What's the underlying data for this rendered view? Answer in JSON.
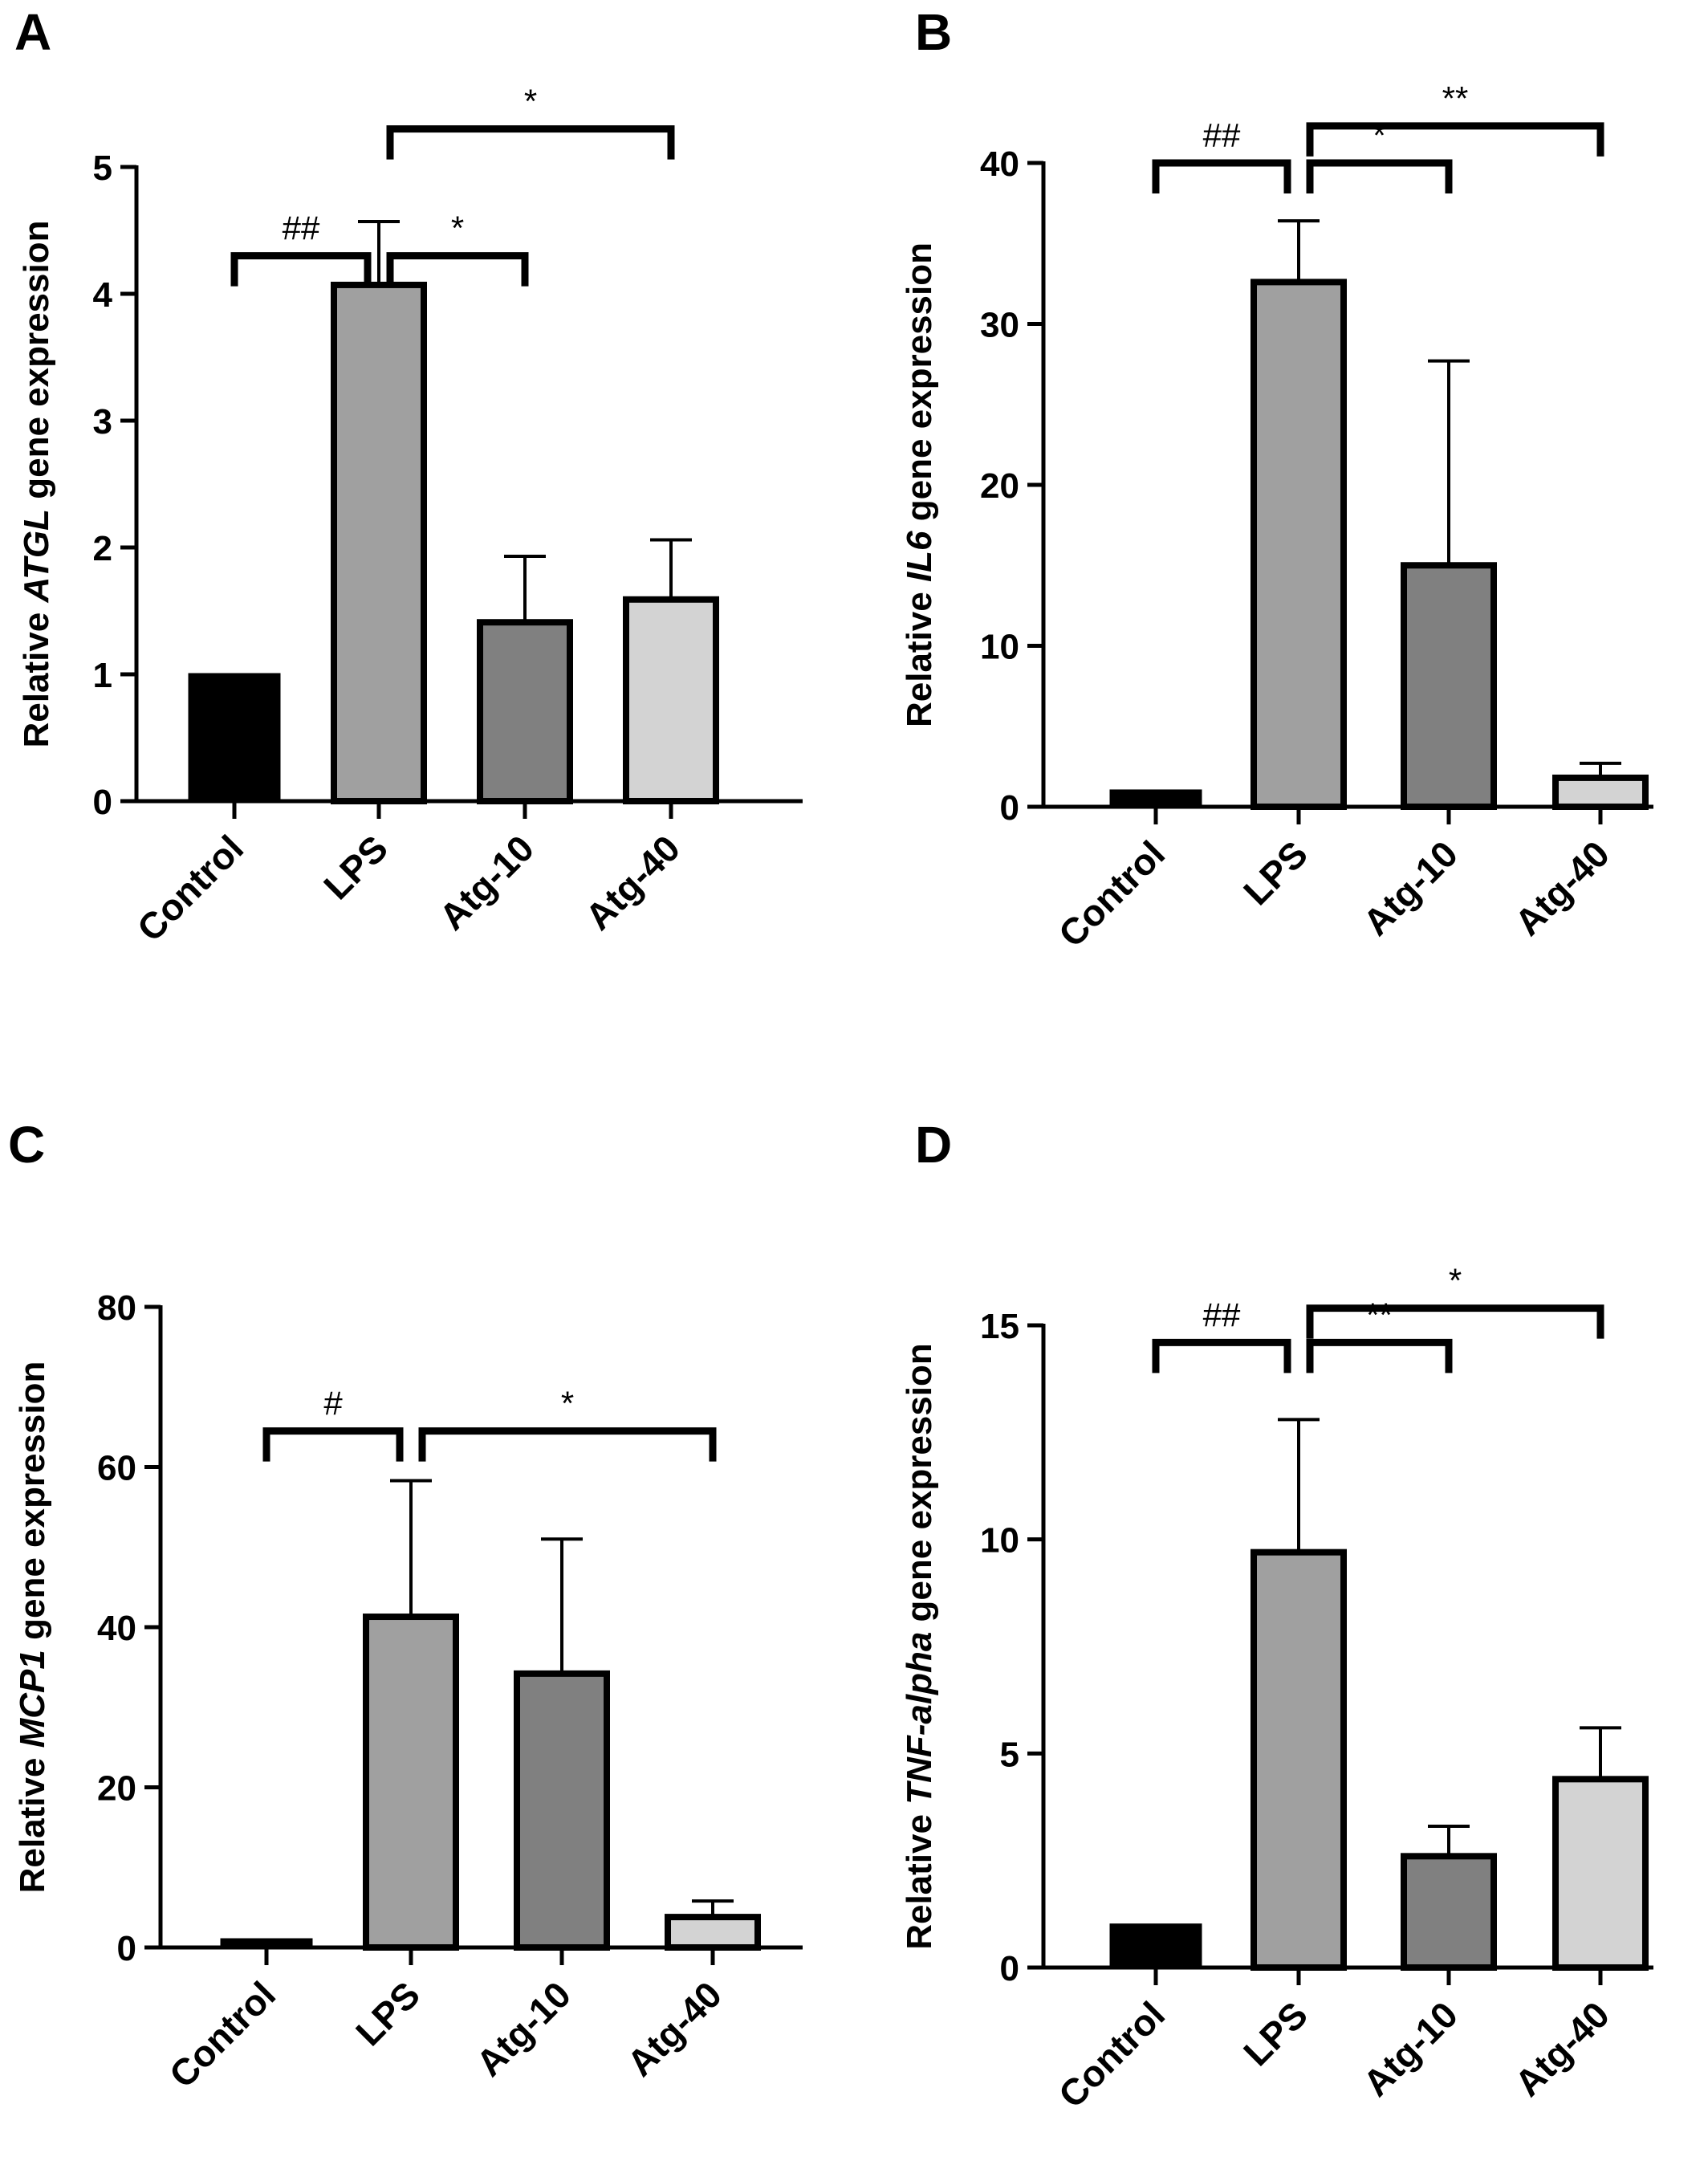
{
  "chart_data": [
    {
      "type": "bar",
      "panel_label": "A",
      "categories": [
        "Control",
        "LPS",
        "Atg-10",
        "Atg-40"
      ],
      "values": [
        1.0,
        4.07,
        1.41,
        1.59
      ],
      "errors": [
        0,
        0.5,
        0.52,
        0.47
      ],
      "bar_colors": [
        "#000000",
        "#a0a0a0",
        "#808080",
        "#d3d3d3"
      ],
      "ylabel_parts": [
        "Relative ",
        "ATGL",
        " gene expression"
      ],
      "ylim": [
        0,
        5
      ],
      "yticks": [
        "0",
        "1",
        "2",
        "3",
        "4",
        "5"
      ],
      "significance": [
        {
          "label": "##",
          "from": 0,
          "to": 1,
          "level": 4.3
        },
        {
          "label": "*",
          "from": 1,
          "to": 2,
          "level": 4.3
        },
        {
          "label": "*",
          "from": 1,
          "to": 3,
          "level": 5.3
        }
      ]
    },
    {
      "type": "bar",
      "panel_label": "B",
      "categories": [
        "Control",
        "LPS",
        "Atg-10",
        "Atg-40"
      ],
      "values": [
        1.0,
        32.6,
        15.0,
        1.8
      ],
      "errors": [
        0,
        3.8,
        12.7,
        0.9
      ],
      "bar_colors": [
        "#000000",
        "#a0a0a0",
        "#808080",
        "#d3d3d3"
      ],
      "ylabel_parts": [
        "Relative ",
        "IL6",
        " gene expression"
      ],
      "ylim": [
        0,
        40
      ],
      "yticks": [
        "0",
        "10",
        "20",
        "30",
        "40"
      ],
      "significance": [
        {
          "label": "##",
          "from": 0,
          "to": 1,
          "level": 40.0
        },
        {
          "label": "*",
          "from": 1,
          "to": 2,
          "level": 40.0
        },
        {
          "label": "**",
          "from": 1,
          "to": 3,
          "level": 42.3
        }
      ]
    },
    {
      "type": "bar",
      "panel_label": "C",
      "categories": [
        "Control",
        "LPS",
        "Atg-10",
        "Atg-40"
      ],
      "values": [
        1.0,
        41.3,
        34.2,
        3.8
      ],
      "errors": [
        0,
        17.0,
        16.8,
        2.0
      ],
      "bar_colors": [
        "#000000",
        "#a0a0a0",
        "#808080",
        "#d3d3d3"
      ],
      "ylabel_parts": [
        "Relative ",
        "MCP1",
        " gene expression"
      ],
      "ylim": [
        0,
        80
      ],
      "yticks": [
        "0",
        "20",
        "40",
        "60",
        "80"
      ],
      "significance": [
        {
          "label": "#",
          "from": 0,
          "to": 1,
          "level": 64.5
        },
        {
          "label": "*",
          "from": 1,
          "to": 3,
          "level": 64.5
        }
      ]
    },
    {
      "type": "bar",
      "panel_label": "D",
      "categories": [
        "Control",
        "LPS",
        "Atg-10",
        "Atg-40"
      ],
      "values": [
        1.0,
        9.7,
        2.6,
        4.4
      ],
      "errors": [
        0,
        3.1,
        0.7,
        1.2
      ],
      "bar_colors": [
        "#000000",
        "#a0a0a0",
        "#808080",
        "#d3d3d3"
      ],
      "ylabel_parts": [
        "Relative ",
        "TNF-alpha",
        " gene expression"
      ],
      "ylim": [
        0,
        15
      ],
      "yticks": [
        "0",
        "5",
        "10",
        "15"
      ],
      "significance": [
        {
          "label": "##",
          "from": 0,
          "to": 1,
          "level": 14.6
        },
        {
          "label": "**",
          "from": 1,
          "to": 2,
          "level": 14.6
        },
        {
          "label": "*",
          "from": 1,
          "to": 3,
          "level": 15.4
        }
      ]
    }
  ]
}
